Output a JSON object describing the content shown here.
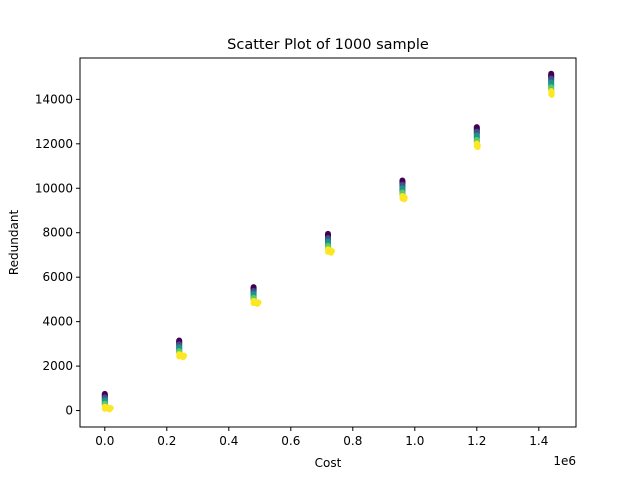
{
  "chart_data": {
    "type": "scatter",
    "title": "Scatter Plot of 1000 sample",
    "xlabel": "Cost",
    "ylabel": "Redundant",
    "x_offset_label": "1e6",
    "xlim": [
      -80000,
      1520000
    ],
    "ylim": [
      -740,
      15860
    ],
    "x_ticks": [
      0,
      200000,
      400000,
      600000,
      800000,
      1000000,
      1200000,
      1400000
    ],
    "x_tick_labels": [
      "0.0",
      "0.2",
      "0.4",
      "0.6",
      "0.8",
      "1.0",
      "1.2",
      "1.4"
    ],
    "y_ticks": [
      0,
      2000,
      4000,
      6000,
      8000,
      10000,
      12000,
      14000
    ],
    "y_tick_labels": [
      "0",
      "2000",
      "4000",
      "6000",
      "8000",
      "10000",
      "12000",
      "14000"
    ],
    "grid": false,
    "colormap": "viridis",
    "clusters": [
      {
        "x": 0,
        "y_top": 750,
        "y_bottom": 50,
        "x_spread": 30000
      },
      {
        "x": 240000,
        "y_top": 3150,
        "y_bottom": 2400,
        "x_spread": 25000
      },
      {
        "x": 480000,
        "y_top": 5550,
        "y_bottom": 4800,
        "x_spread": 25000
      },
      {
        "x": 720000,
        "y_top": 7950,
        "y_bottom": 7100,
        "x_spread": 20000
      },
      {
        "x": 960000,
        "y_top": 10350,
        "y_bottom": 9500,
        "x_spread": 12000
      },
      {
        "x": 1200000,
        "y_top": 12750,
        "y_bottom": 11850,
        "x_spread": 5000
      },
      {
        "x": 1440000,
        "y_top": 15150,
        "y_bottom": 14200,
        "x_spread": 3000
      }
    ],
    "colors": [
      "#440154",
      "#3b528b",
      "#21918c",
      "#5ec962",
      "#fde725"
    ]
  }
}
